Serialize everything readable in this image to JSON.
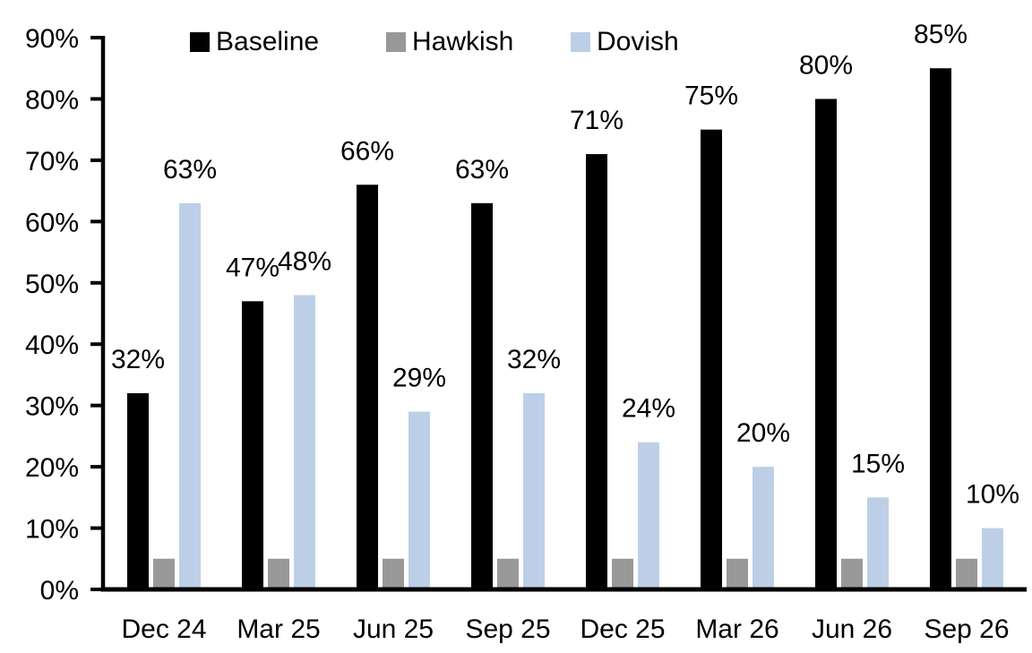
{
  "chart_data": {
    "type": "bar",
    "title": "",
    "xlabel": "",
    "ylabel": "",
    "categories": [
      "Dec 24",
      "Mar 25",
      "Jun 25",
      "Sep 25",
      "Dec 25",
      "Mar 26",
      "Jun 26",
      "Sep 26"
    ],
    "series": [
      {
        "name": "Baseline",
        "color": "#000000",
        "data_labels": true,
        "values": [
          32,
          47,
          66,
          63,
          71,
          75,
          80,
          85
        ]
      },
      {
        "name": "Hawkish",
        "color": "#989898",
        "data_labels": false,
        "values": [
          5,
          5,
          5,
          5,
          5,
          5,
          5,
          5
        ]
      },
      {
        "name": "Dovish",
        "color": "#BCCFE7",
        "data_labels": true,
        "values": [
          63,
          48,
          29,
          32,
          24,
          20,
          15,
          10
        ]
      }
    ],
    "ylim": [
      0,
      90
    ],
    "ytick_step": 10,
    "tick_suffix": "%",
    "label_suffix": "%",
    "legend_position": "top",
    "grid": false,
    "background_color": "#FFFFFF",
    "axis_color": "#000000",
    "text_color": "#000000"
  }
}
